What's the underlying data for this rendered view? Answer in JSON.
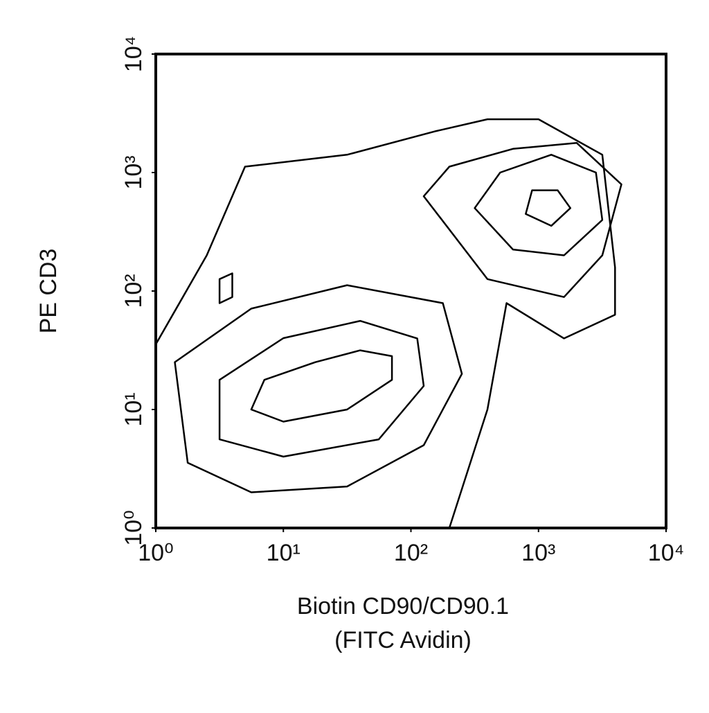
{
  "chart_data": {
    "type": "contour",
    "x_label": [
      "Biotin CD90/CD90.1",
      "(FITC Avidin)"
    ],
    "y_label": "PE CD3",
    "xscale": "log",
    "yscale": "log",
    "xlim": [
      1,
      10000
    ],
    "ylim": [
      1,
      10000
    ],
    "xticks": [
      {
        "value": 1,
        "label": "10⁰"
      },
      {
        "value": 10,
        "label": "10¹"
      },
      {
        "value": 100,
        "label": "10²"
      },
      {
        "value": 1000,
        "label": "10³"
      },
      {
        "value": 10000,
        "label": "10⁴"
      }
    ],
    "yticks": [
      {
        "value": 1,
        "label": "10⁰"
      },
      {
        "value": 10,
        "label": "10¹"
      },
      {
        "value": 100,
        "label": "10²"
      },
      {
        "value": 1000,
        "label": "10³"
      },
      {
        "value": 10000,
        "label": "10⁴"
      }
    ],
    "color": "#000000",
    "contours": [
      {
        "x": [
          1,
          2.51,
          5.01,
          31.6,
          158,
          398,
          1000,
          3162,
          3981,
          3981,
          1585,
          562,
          398,
          200,
          31.6,
          1
        ],
        "y": [
          35.5,
          200,
          1122,
          1413,
          2239,
          2818,
          2818,
          1413,
          158,
          63,
          39.8,
          79,
          10,
          1,
          1,
          1
        ]
      },
      {
        "x": [
          1.78,
          5.6,
          31.6,
          126,
          251,
          178,
          31.6,
          5.6,
          1.41
        ],
        "y": [
          3.55,
          2,
          2.24,
          5,
          20,
          79,
          112,
          71,
          25.1
        ]
      },
      {
        "x": [
          3.16,
          10,
          56,
          126,
          112,
          40,
          10,
          3.16
        ],
        "y": [
          5.6,
          4,
          5.6,
          15.8,
          39.8,
          56,
          40,
          17.8
        ]
      },
      {
        "x": [
          5.6,
          10,
          31.6,
          71,
          71,
          40,
          17.8,
          7.1
        ],
        "y": [
          10,
          7.9,
          10,
          17.8,
          28.2,
          31.6,
          25.1,
          17.8
        ]
      },
      {
        "x": [
          126,
          398,
          1585,
          3162,
          4467,
          1995,
          631,
          200
        ],
        "y": [
          631,
          126,
          89,
          200,
          794,
          1778,
          1585,
          1122
        ]
      },
      {
        "x": [
          316,
          631,
          1585,
          3162,
          2818,
          1259,
          501
        ],
        "y": [
          501,
          224,
          200,
          398,
          1000,
          1413,
          1000
        ]
      },
      {
        "x": [
          794,
          1259,
          1778,
          1413,
          891
        ],
        "y": [
          447,
          355,
          501,
          708,
          708
        ]
      },
      {
        "x": [
          3.16,
          3.98,
          3.98,
          3.16
        ],
        "y": [
          79,
          89,
          141,
          126
        ]
      }
    ]
  }
}
